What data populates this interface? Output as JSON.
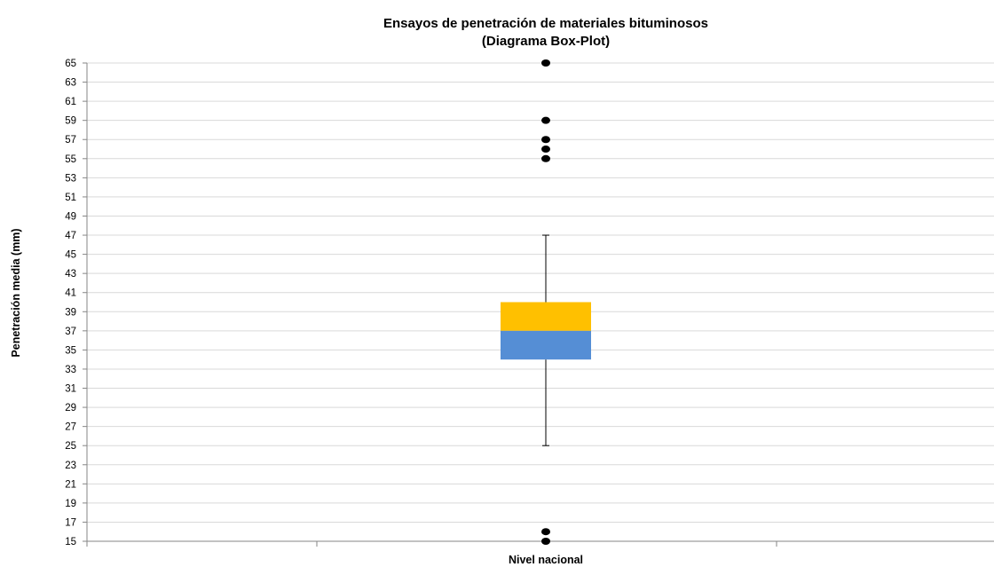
{
  "chart_data": {
    "type": "boxplot",
    "title": "Ensayos de  penetración de materiales bituminosos",
    "subtitle": "(Diagrama Box-Plot)",
    "ylabel": "Penetración media (mm)",
    "categories": [
      "Nivel nacional"
    ],
    "ylim": [
      15,
      65
    ],
    "ytick_step": 2,
    "grid": true,
    "box": {
      "whisker_low": 25,
      "q1": 34,
      "median": 37,
      "q3": 40,
      "whisker_high": 47
    },
    "outliers": [
      65,
      59,
      57,
      56,
      55,
      16,
      15
    ],
    "colors": {
      "lower_box": "#558ED5",
      "upper_box": "#FFC000",
      "grid": "#D9D9D9",
      "axis": "#868686",
      "whisker": "#000000",
      "outlier": "#000000"
    }
  }
}
